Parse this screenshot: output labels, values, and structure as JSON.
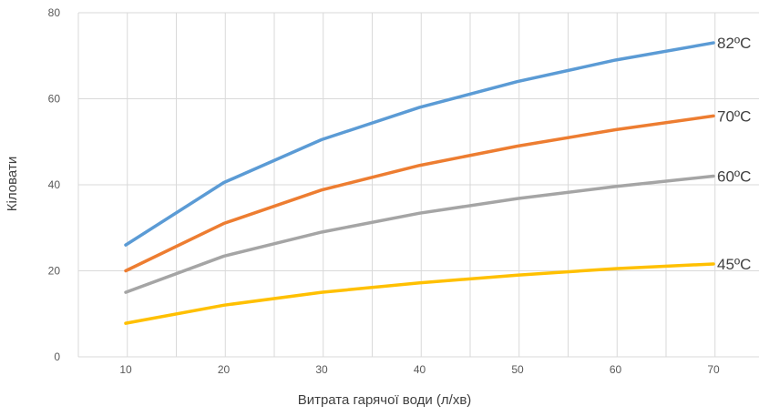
{
  "chart_data": {
    "type": "line",
    "title": "",
    "xlabel": "Витрата гарячої води (л/хв)",
    "ylabel": "Кіловати",
    "x": [
      10,
      20,
      30,
      40,
      50,
      60,
      70
    ],
    "ylim": [
      0,
      80
    ],
    "yticks": [
      0,
      20,
      40,
      60,
      80
    ],
    "grid": true,
    "series": [
      {
        "name": "82ºC",
        "color": "#5b9bd5",
        "values": [
          26,
          40.5,
          50.5,
          58,
          64,
          69,
          73
        ]
      },
      {
        "name": "70ºC",
        "color": "#ed7d31",
        "values": [
          20,
          31,
          38.8,
          44.5,
          49,
          52.8,
          56
        ]
      },
      {
        "name": "60ºC",
        "color": "#a5a5a5",
        "values": [
          15,
          23.4,
          29,
          33.4,
          36.8,
          39.6,
          42
        ]
      },
      {
        "name": "45ºC",
        "color": "#ffc000",
        "values": [
          7.8,
          12,
          15,
          17.2,
          19,
          20.5,
          21.6
        ]
      }
    ]
  }
}
